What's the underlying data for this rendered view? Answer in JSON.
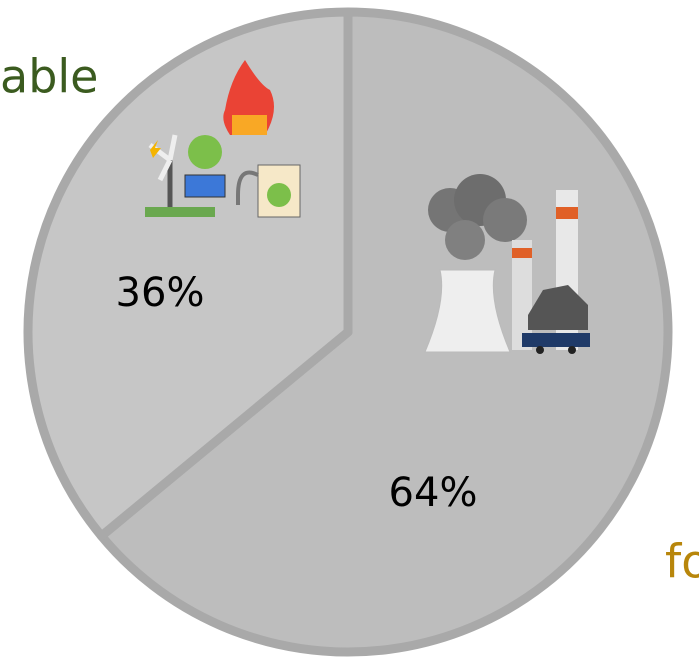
{
  "chart_data": {
    "type": "pie",
    "categories": [
      "fo",
      "able"
    ],
    "values": [
      64,
      36
    ],
    "value_labels": [
      "64%",
      "36%"
    ],
    "colors": [
      "#bdbdbd",
      "#c6c6c6"
    ],
    "label_colors": [
      "#b8860b",
      "#3b5b1f"
    ]
  }
}
